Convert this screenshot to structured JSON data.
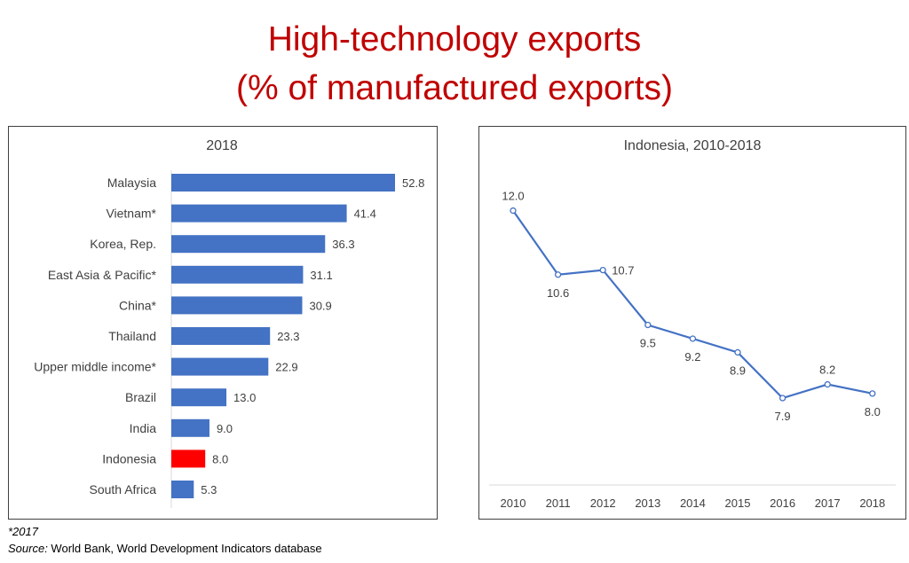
{
  "title": {
    "line1": "High-technology exports",
    "line2": "(% of manufactured exports)"
  },
  "colors": {
    "bar": "#4472C4",
    "highlight": "#FF0000",
    "line": "#4472C4",
    "title": "#C00000"
  },
  "chart_data": [
    {
      "type": "bar",
      "orientation": "horizontal",
      "title": "2018",
      "categories": [
        "Malaysia",
        "Vietnam*",
        "Korea, Rep.",
        "East Asia & Pacific*",
        "China*",
        "Thailand",
        "Upper middle income*",
        "Brazil",
        "India",
        "Indonesia",
        "South Africa"
      ],
      "values": [
        52.8,
        41.4,
        36.3,
        31.1,
        30.9,
        23.3,
        22.9,
        13.0,
        9.0,
        8.0,
        5.3
      ],
      "labels": [
        "52.8",
        "41.4",
        "36.3",
        "31.1",
        "30.9",
        "23.3",
        "22.9",
        "13.0",
        "9.0",
        "8.0",
        "5.3"
      ],
      "highlight": "Indonesia",
      "xlim": [
        0,
        60
      ],
      "grid": false
    },
    {
      "type": "line",
      "title": "Indonesia, 2010-2018",
      "x": [
        "2010",
        "2011",
        "2012",
        "2013",
        "2014",
        "2015",
        "2016",
        "2017",
        "2018"
      ],
      "values": [
        12.0,
        10.6,
        10.7,
        9.5,
        9.2,
        8.9,
        7.9,
        8.2,
        8.0
      ],
      "labels": [
        "12.0",
        "10.6",
        "10.7",
        "9.5",
        "9.2",
        "8.9",
        "7.9",
        "8.2",
        "8.0"
      ],
      "label_position": [
        "above",
        "below",
        "right",
        "below",
        "below",
        "below",
        "below",
        "above",
        "below"
      ],
      "ylim": [
        6,
        13
      ],
      "grid": false
    }
  ],
  "footnote": {
    "note": "*2017",
    "source_label": "Source:",
    "source_text": " World Bank, World Development Indicators database"
  }
}
